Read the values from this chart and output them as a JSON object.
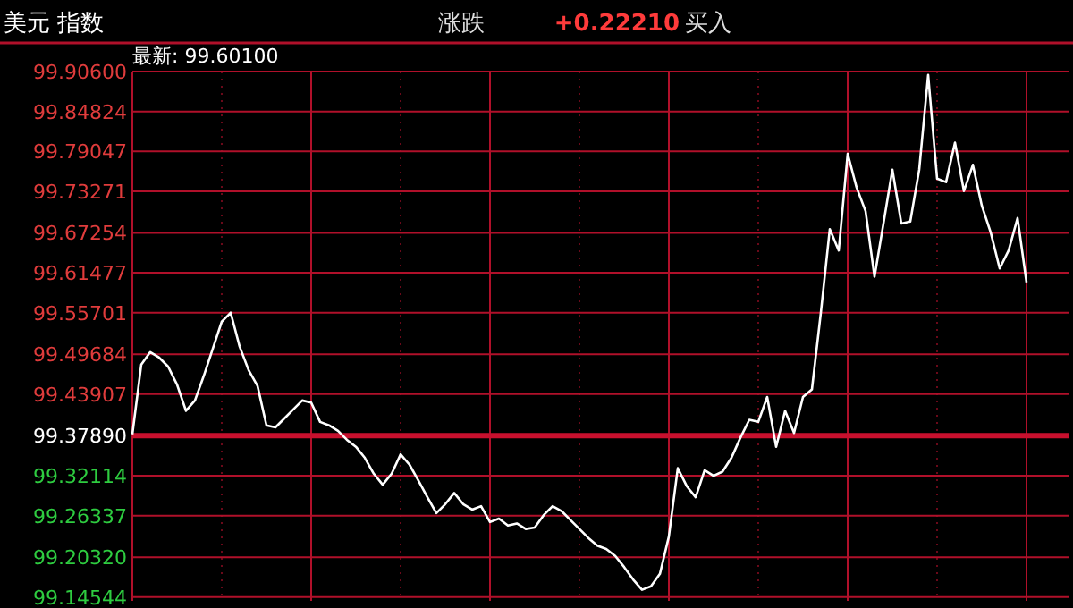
{
  "chart_data": {
    "type": "line",
    "title": "美元 指数",
    "annotations": [
      "涨跌",
      "+0.22210",
      "买入",
      "最新: 99.60100"
    ],
    "categories": [
      null,
      null,
      null,
      null,
      null,
      null,
      null,
      null,
      null,
      null,
      null,
      null,
      null,
      null,
      null,
      null,
      null,
      null,
      null,
      null,
      null,
      null,
      null,
      null,
      null,
      null,
      null,
      null,
      null,
      null,
      null,
      null,
      null,
      null,
      null,
      null,
      null,
      null,
      null,
      null,
      null,
      null,
      null,
      null,
      null,
      null,
      null,
      null,
      null,
      null,
      null,
      null,
      null,
      null,
      null,
      null,
      null,
      null,
      null,
      null,
      null,
      null,
      null,
      null,
      null,
      null,
      null,
      null,
      null,
      null,
      null,
      null,
      null,
      null,
      null,
      null,
      null,
      null,
      null,
      null,
      null,
      null,
      null,
      null,
      null,
      null,
      null,
      null,
      null,
      null,
      null,
      null,
      null,
      null,
      null,
      null,
      null,
      null,
      null,
      null,
      null
    ],
    "series": [
      {
        "color": "#ffffff",
        "values": [
          99.381,
          99.482,
          99.5,
          99.492,
          99.479,
          99.453,
          99.415,
          99.43,
          99.466,
          99.505,
          99.544,
          99.557,
          99.508,
          99.474,
          99.451,
          99.394,
          99.391,
          99.404,
          99.417,
          99.43,
          99.427,
          99.399,
          99.394,
          99.386,
          99.373,
          99.363,
          99.347,
          99.324,
          99.308,
          99.324,
          99.352,
          99.337,
          99.314,
          99.29,
          99.267,
          99.28,
          99.296,
          99.28,
          99.272,
          99.277,
          99.254,
          99.259,
          99.249,
          99.252,
          99.244,
          99.246,
          99.264,
          99.277,
          99.27,
          99.257,
          99.244,
          99.231,
          99.22,
          99.215,
          99.205,
          99.189,
          99.171,
          99.156,
          99.161,
          99.179,
          99.233,
          99.332,
          99.306,
          99.29,
          99.329,
          99.321,
          99.327,
          99.347,
          99.376,
          99.402,
          99.399,
          99.435,
          99.363,
          99.415,
          99.383,
          99.435,
          99.446,
          99.557,
          99.678,
          99.647,
          99.787,
          99.738,
          99.704,
          99.609,
          99.686,
          99.764,
          99.686,
          99.689,
          99.764,
          99.901,
          99.751,
          99.746,
          99.803,
          99.733,
          99.771,
          99.712,
          99.673,
          99.621,
          99.647,
          99.694,
          99.601
        ]
      }
    ],
    "ylim": [
      99.14,
      99.906
    ],
    "yticks": [
      {
        "value": 99.906,
        "label": "99.90600"
      },
      {
        "value": 99.84824,
        "label": "99.84824"
      },
      {
        "value": 99.79047,
        "label": "99.79047"
      },
      {
        "value": 99.73271,
        "label": "99.73271"
      },
      {
        "value": 99.67254,
        "label": "99.67254"
      },
      {
        "value": 99.61477,
        "label": "99.61477"
      },
      {
        "value": 99.55701,
        "label": "99.55701"
      },
      {
        "value": 99.49684,
        "label": "99.49684"
      },
      {
        "value": 99.43907,
        "label": "99.43907"
      },
      {
        "value": 99.3789,
        "label": "99.37890"
      },
      {
        "value": 99.32114,
        "label": "99.32114"
      },
      {
        "value": 99.26337,
        "label": "99.26337"
      },
      {
        "value": 99.2032,
        "label": "99.20320"
      },
      {
        "value": 99.14544,
        "label": "99.14544"
      }
    ],
    "ref_lines": [
      {
        "axis": "y",
        "value": 99.3789,
        "color": "#c8102e"
      }
    ],
    "grid": true,
    "marker": "none",
    "line_style": "solid"
  }
}
